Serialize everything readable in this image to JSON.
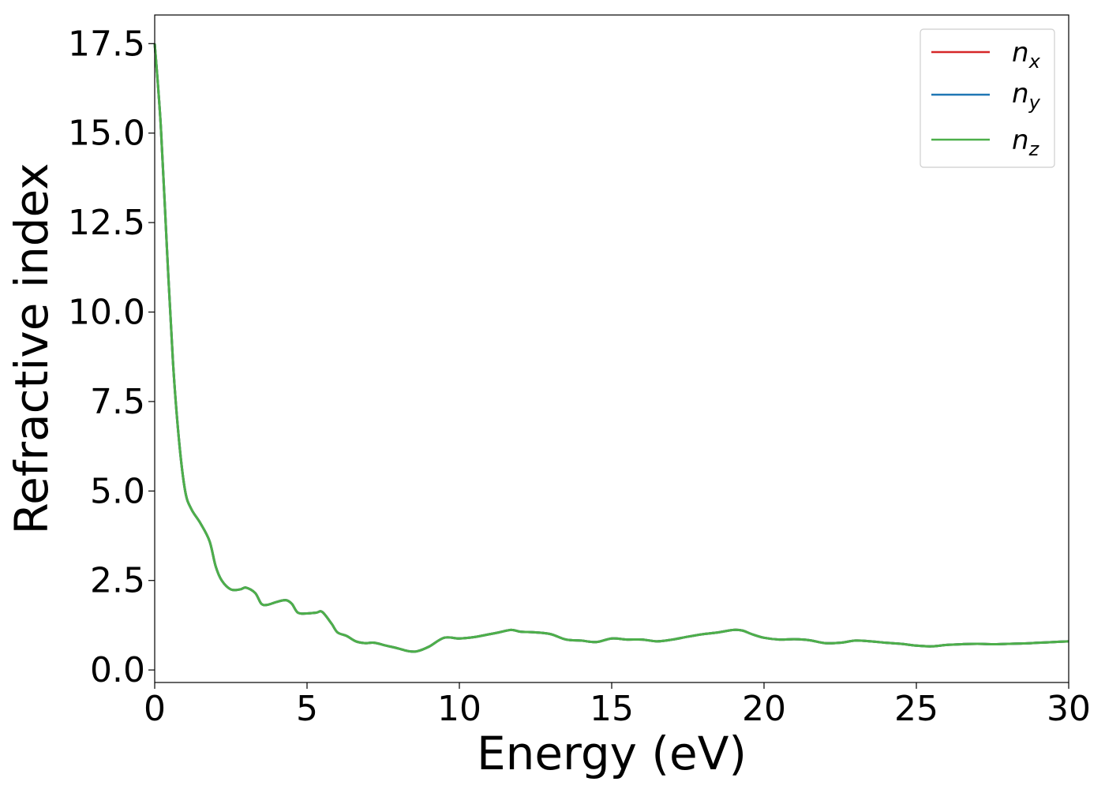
{
  "chart_data": {
    "type": "line",
    "title": "",
    "xlabel": "Energy (eV)",
    "ylabel": "Refractive index",
    "xlim": [
      0,
      30
    ],
    "ylim": [
      -0.35,
      18.3
    ],
    "xticks": [
      {
        "value": 0,
        "label": "0"
      },
      {
        "value": 5,
        "label": "5"
      },
      {
        "value": 10,
        "label": "10"
      },
      {
        "value": 15,
        "label": "15"
      },
      {
        "value": 20,
        "label": "20"
      },
      {
        "value": 25,
        "label": "25"
      },
      {
        "value": 30,
        "label": "30"
      }
    ],
    "yticks": [
      {
        "value": 0,
        "label": "0.0"
      },
      {
        "value": 2.5,
        "label": "2.5"
      },
      {
        "value": 5,
        "label": "5.0"
      },
      {
        "value": 7.5,
        "label": "7.5"
      },
      {
        "value": 10,
        "label": "10.0"
      },
      {
        "value": 12.5,
        "label": "12.5"
      },
      {
        "value": 15,
        "label": "15.0"
      },
      {
        "value": 17.5,
        "label": "17.5"
      }
    ],
    "grid": false,
    "legend_position": "top-right",
    "series": [
      {
        "name": "n",
        "subscript": "x",
        "color": "#d62728"
      },
      {
        "name": "n",
        "subscript": "y",
        "color": "#1f77b4"
      },
      {
        "name": "n",
        "subscript": "z",
        "color": "#4daf4a"
      }
    ],
    "x": [
      0,
      0.2,
      0.4,
      0.6,
      0.8,
      1.0,
      1.2,
      1.5,
      1.8,
      2.0,
      2.2,
      2.5,
      2.8,
      3.0,
      3.3,
      3.5,
      3.7,
      4.0,
      4.3,
      4.5,
      4.7,
      5.0,
      5.3,
      5.5,
      5.8,
      6.0,
      6.3,
      6.6,
      6.9,
      7.2,
      7.6,
      8.0,
      8.3,
      8.6,
      9.0,
      9.5,
      10.0,
      10.5,
      11.0,
      11.3,
      11.7,
      12.0,
      12.5,
      13.0,
      13.5,
      14.0,
      14.5,
      15.0,
      15.5,
      16.0,
      16.5,
      17.0,
      17.5,
      18.0,
      18.5,
      19.0,
      19.3,
      19.6,
      20.0,
      20.5,
      21.0,
      21.5,
      22.0,
      22.5,
      23.0,
      23.5,
      24.0,
      24.5,
      25.0,
      25.5,
      26.0,
      26.5,
      27.0,
      27.5,
      28.0,
      28.5,
      29.0,
      29.5,
      30.0
    ],
    "values": [
      17.5,
      15.2,
      11.8,
      8.6,
      6.4,
      5.0,
      4.5,
      4.1,
      3.6,
      2.9,
      2.5,
      2.25,
      2.25,
      2.3,
      2.15,
      1.85,
      1.82,
      1.9,
      1.95,
      1.85,
      1.6,
      1.58,
      1.6,
      1.62,
      1.3,
      1.05,
      0.95,
      0.8,
      0.75,
      0.76,
      0.68,
      0.6,
      0.53,
      0.52,
      0.65,
      0.9,
      0.88,
      0.92,
      1.0,
      1.05,
      1.12,
      1.07,
      1.05,
      1.0,
      0.85,
      0.82,
      0.78,
      0.88,
      0.85,
      0.85,
      0.8,
      0.85,
      0.93,
      1.0,
      1.05,
      1.12,
      1.1,
      1.0,
      0.9,
      0.85,
      0.86,
      0.83,
      0.75,
      0.76,
      0.82,
      0.8,
      0.76,
      0.73,
      0.68,
      0.66,
      0.7,
      0.72,
      0.73,
      0.72,
      0.73,
      0.74,
      0.76,
      0.78,
      0.8
    ]
  }
}
